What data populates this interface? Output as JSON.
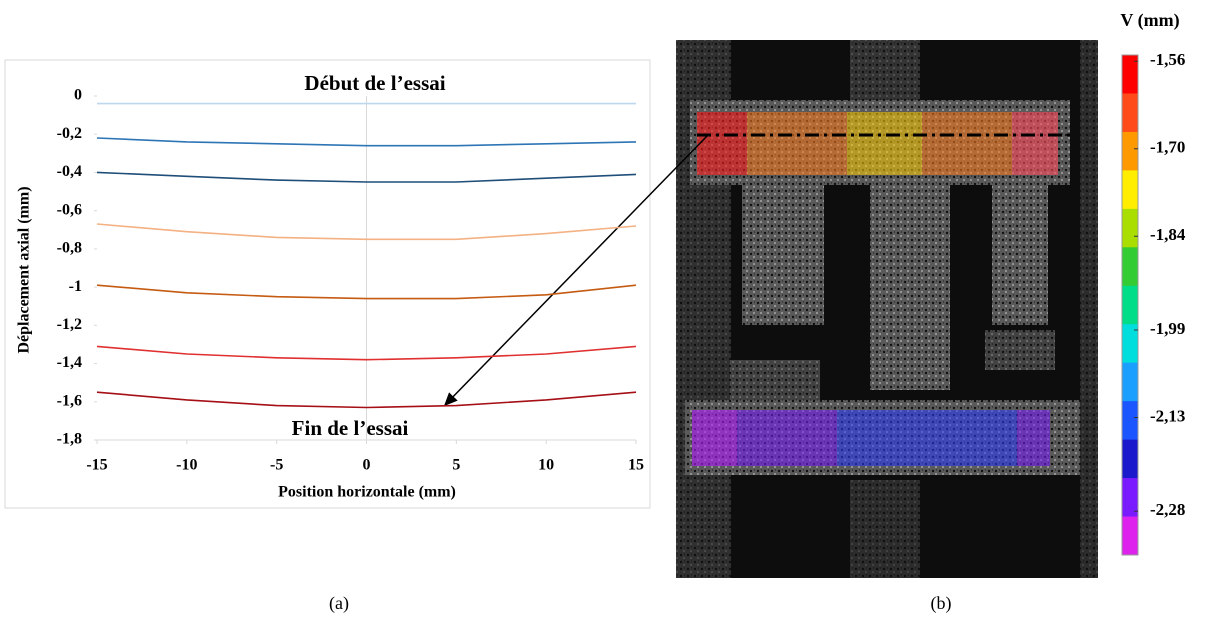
{
  "chart_data": [
    {
      "type": "line",
      "title": "Début de l’essai",
      "annotations": [
        "Fin de l’essai"
      ],
      "x_label": "Position horizontale (mm)",
      "y_label": "Déplacement axial (mm)",
      "caption": "(a)",
      "x": [
        -15,
        -10,
        -5,
        0,
        5,
        10,
        15
      ],
      "series": [
        {
          "color": "#bdd7ee",
          "values": [
            -0.04,
            -0.04,
            -0.04,
            -0.04,
            -0.04,
            -0.04,
            -0.04
          ]
        },
        {
          "color": "#2e75b6",
          "values": [
            -0.22,
            -0.24,
            -0.25,
            -0.26,
            -0.26,
            -0.25,
            -0.24
          ]
        },
        {
          "color": "#1f4e79",
          "values": [
            -0.4,
            -0.42,
            -0.44,
            -0.45,
            -0.45,
            -0.43,
            -0.41
          ]
        },
        {
          "color": "#f4b183",
          "values": [
            -0.67,
            -0.71,
            -0.74,
            -0.75,
            -0.75,
            -0.72,
            -0.68
          ]
        },
        {
          "color": "#c55a11",
          "values": [
            -0.99,
            -1.03,
            -1.05,
            -1.06,
            -1.06,
            -1.04,
            -0.99
          ]
        },
        {
          "color": "#e03030",
          "values": [
            -1.31,
            -1.35,
            -1.37,
            -1.38,
            -1.37,
            -1.35,
            -1.31
          ]
        },
        {
          "color": "#a50f15",
          "values": [
            -1.55,
            -1.59,
            -1.62,
            -1.63,
            -1.62,
            -1.59,
            -1.55
          ]
        }
      ],
      "xlim": [
        -15,
        15
      ],
      "xticks": [
        -15,
        -10,
        -5,
        0,
        5,
        10,
        15
      ],
      "ylim": [
        -1.8,
        0
      ],
      "yticks": [
        0,
        {
          "value": -0.2,
          "label": "-0,2"
        },
        {
          "value": -0.4,
          "label": "-0,4"
        },
        {
          "value": -0.6,
          "label": "-0,6"
        },
        {
          "value": -0.8,
          "label": "-0,8"
        },
        -1,
        {
          "value": -1.2,
          "label": "-1,2"
        },
        {
          "value": -1.4,
          "label": "-1,4"
        },
        {
          "value": -1.6,
          "label": "-1,6"
        },
        {
          "value": -1.8,
          "label": "-1,8"
        }
      ]
    },
    {
      "type": "colorbar",
      "title": "V (mm)",
      "caption": "(b)",
      "colors": [
        "#ff0000",
        "#ff4a1a",
        "#ff9900",
        "#ffee00",
        "#aadd00",
        "#33cc33",
        "#00dd88",
        "#00dddd",
        "#1a9fff",
        "#1a55ff",
        "#1a1acc",
        "#7a1aff",
        "#dd22ee"
      ],
      "ylim": [
        -2.35,
        -1.55
      ],
      "yticks": [
        {
          "value": -1.56,
          "label": "-1,56"
        },
        {
          "value": -1.7,
          "label": "-1,70"
        },
        {
          "value": -1.84,
          "label": "-1,84"
        },
        {
          "value": -1.99,
          "label": "-1,99"
        },
        {
          "value": -2.13,
          "label": "-2,13"
        },
        {
          "value": -2.28,
          "label": "-2,28"
        }
      ]
    }
  ]
}
